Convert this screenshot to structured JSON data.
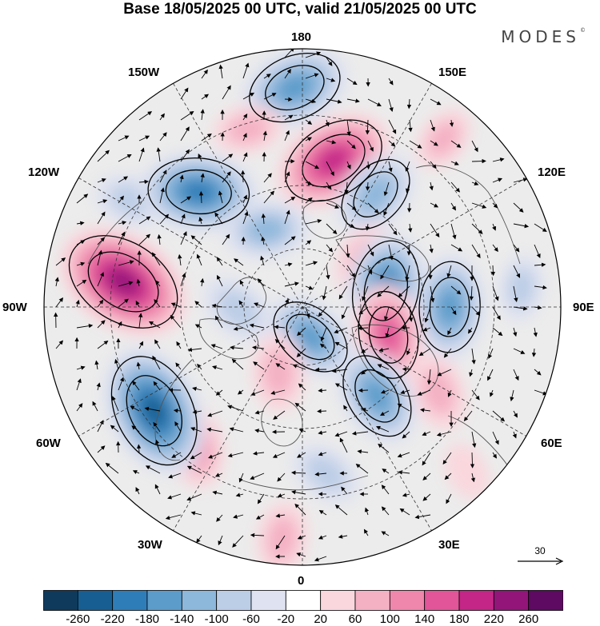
{
  "title": "Base 18/05/2025 00 UTC, valid 21/05/2025 00 UTC",
  "brand": {
    "name": "MODES",
    "mark": "©"
  },
  "map": {
    "projection": "north-polar-stereographic",
    "longitude_labels": {
      "top": "180",
      "top_left": "150W",
      "top_right": "150E",
      "upper_left": "120W",
      "upper_right": "120E",
      "left": "90W",
      "right": "90E",
      "lower_left": "60W",
      "lower_right": "60E",
      "bottom_left": "30W",
      "bottom_right": "30E",
      "bottom": "0"
    }
  },
  "wind_reference": {
    "value": "30"
  },
  "colorbar": {
    "ticks": [
      "-260",
      "-220",
      "-180",
      "-140",
      "-100",
      "-60",
      "-20",
      "20",
      "60",
      "100",
      "140",
      "180",
      "220",
      "260"
    ],
    "colors": [
      "#0f3a5c",
      "#175f93",
      "#2f7db8",
      "#5c9cca",
      "#8eb7dc",
      "#bccde6",
      "#dfe2f0",
      "#ffffff",
      "#f9d7dd",
      "#f4b1c4",
      "#ef86ab",
      "#e25599",
      "#c42688",
      "#94157a",
      "#5e0a62"
    ]
  },
  "anomalies": [
    {
      "lon": 182,
      "r": 0.85,
      "v": -170
    },
    {
      "lon": 168,
      "r": 0.58,
      "v": 200
    },
    {
      "lon": 147,
      "r": 0.52,
      "v": -130
    },
    {
      "lon": 128,
      "r": 0.3,
      "v": 80
    },
    {
      "lon": 102,
      "r": 0.33,
      "v": -180
    },
    {
      "lon": 90,
      "r": 0.57,
      "v": -160
    },
    {
      "lon": 72,
      "r": 0.35,
      "v": 150
    },
    {
      "lon": 58,
      "r": 0.62,
      "v": 90
    },
    {
      "lon": 40,
      "r": 0.45,
      "v": -150
    },
    {
      "lon": 15,
      "r": 0.12,
      "v": -140
    },
    {
      "lon": 8,
      "r": 0.65,
      "v": -80
    },
    {
      "lon": 355,
      "r": 0.9,
      "v": 80
    },
    {
      "lon": 340,
      "r": 0.27,
      "v": 90
    },
    {
      "lon": 322,
      "r": 0.68,
      "v": 110
    },
    {
      "lon": 305,
      "r": 0.7,
      "v": -230
    },
    {
      "lon": 272,
      "r": 0.25,
      "v": -90
    },
    {
      "lon": 262,
      "r": 0.7,
      "v": 240
    },
    {
      "lon": 238,
      "r": 0.78,
      "v": -80
    },
    {
      "lon": 222,
      "r": 0.6,
      "v": -190
    },
    {
      "lon": 205,
      "r": 0.33,
      "v": -110
    },
    {
      "lon": 197,
      "r": 0.72,
      "v": 70
    },
    {
      "lon": 140,
      "r": 0.85,
      "v": 60
    },
    {
      "lon": 95,
      "r": 0.85,
      "v": -60
    },
    {
      "lon": 45,
      "r": 0.9,
      "v": 40
    }
  ]
}
